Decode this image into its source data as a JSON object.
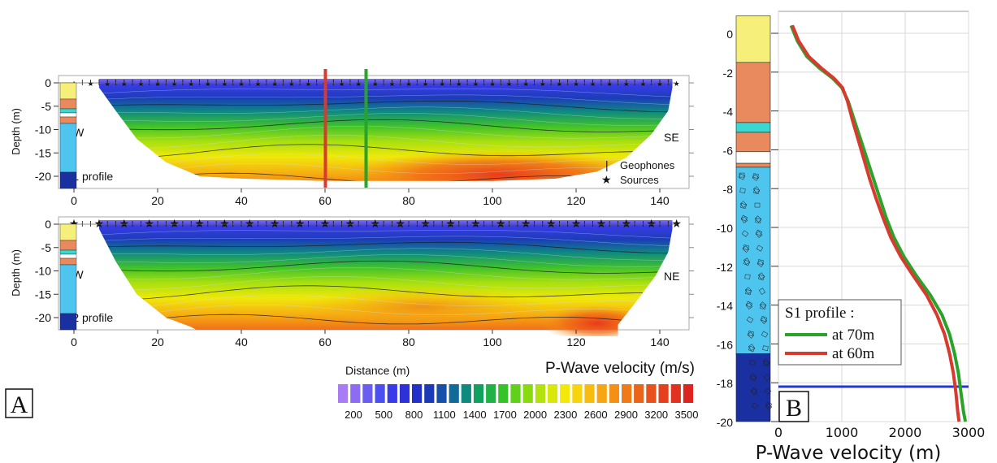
{
  "panel_letters": {
    "a": "A",
    "b": "B"
  },
  "colors": {
    "red_line": "#d83a30",
    "green_line": "#29a329",
    "blue_line": "#2535d8",
    "soil_yellow": "#f6f07a",
    "soil_orange": "#e8895e",
    "soil_blue": "#4ec5ee",
    "soil_darkblue": "#1a2fa0",
    "soil_cyan": "#39d8d0"
  },
  "chart_data": [
    {
      "type": "heatmap",
      "title": "",
      "xlabel": "Distance (m)",
      "ylabel": "Depth (m)",
      "xlim": [
        -3,
        148
      ],
      "ylim": [
        -24,
        0
      ],
      "xticks": [
        0,
        20,
        40,
        60,
        80,
        100,
        120,
        140
      ],
      "yticks": [
        0,
        -5,
        -10,
        -15,
        -20
      ],
      "profile_label": "S1 profile",
      "left_label": "NW",
      "right_label": "SE",
      "legend": {
        "geophones": "Geophones",
        "sources": "Sources"
      },
      "marker_lines": [
        {
          "x": 60,
          "color": "#d83a30"
        },
        {
          "x": 70,
          "color": "#29a329"
        }
      ],
      "depth_profile": [
        {
          "x": 6,
          "depth": -1
        },
        {
          "x": 10,
          "depth": -6
        },
        {
          "x": 15,
          "depth": -12
        },
        {
          "x": 22,
          "depth": -17
        },
        {
          "x": 30,
          "depth": -20
        },
        {
          "x": 40,
          "depth": -20.5
        },
        {
          "x": 60,
          "depth": -21
        },
        {
          "x": 80,
          "depth": -21
        },
        {
          "x": 100,
          "depth": -21
        },
        {
          "x": 115,
          "depth": -20.5
        },
        {
          "x": 125,
          "depth": -19
        },
        {
          "x": 132,
          "depth": -16
        },
        {
          "x": 138,
          "depth": -11
        },
        {
          "x": 142,
          "depth": -6
        },
        {
          "x": 143,
          "depth": -1
        }
      ]
    },
    {
      "type": "heatmap",
      "title": "",
      "xlabel": "Distance (m)",
      "ylabel": "Depth (m)",
      "xlim": [
        -3,
        148
      ],
      "ylim": [
        -24,
        0
      ],
      "xticks": [
        0,
        20,
        40,
        60,
        80,
        100,
        120,
        140
      ],
      "yticks": [
        0,
        -5,
        -10,
        -15,
        -20
      ],
      "profile_label": "S2 profile",
      "left_label": "SW",
      "right_label": "NE",
      "depth_profile": [
        {
          "x": 6,
          "depth": -1
        },
        {
          "x": 10,
          "depth": -8
        },
        {
          "x": 15,
          "depth": -15
        },
        {
          "x": 22,
          "depth": -20
        },
        {
          "x": 28,
          "depth": -22
        },
        {
          "x": 32,
          "depth": -24
        },
        {
          "x": 130,
          "depth": -24
        },
        {
          "x": 130,
          "depth": -21.5
        },
        {
          "x": 134,
          "depth": -17
        },
        {
          "x": 139,
          "depth": -11
        },
        {
          "x": 142,
          "depth": -6
        },
        {
          "x": 143,
          "depth": -1
        }
      ]
    },
    {
      "type": "line",
      "title": "",
      "xlabel": "P-Wave velocity (m)",
      "ylabel": "",
      "xlim": [
        0,
        3000
      ],
      "ylim": [
        -20,
        0.5
      ],
      "xticks": [
        0,
        1000,
        2000,
        3000
      ],
      "yticks": [
        0,
        -2,
        -4,
        -6,
        -8,
        -10,
        -12,
        -14,
        -16,
        -18,
        -20
      ],
      "grid": true,
      "legend_title": "S1 profile :",
      "legend_position": "bottom-left",
      "horizontal_line": {
        "y": -18.2,
        "color": "#2535d8"
      },
      "series": [
        {
          "name": "at 70m",
          "color": "#29a329",
          "points": [
            {
              "v": 200,
              "d": 0.4
            },
            {
              "v": 300,
              "d": -0.4
            },
            {
              "v": 450,
              "d": -1.2
            },
            {
              "v": 650,
              "d": -1.8
            },
            {
              "v": 850,
              "d": -2.3
            },
            {
              "v": 1000,
              "d": -2.8
            },
            {
              "v": 1100,
              "d": -3.5
            },
            {
              "v": 1200,
              "d": -4.5
            },
            {
              "v": 1300,
              "d": -5.5
            },
            {
              "v": 1400,
              "d": -6.5
            },
            {
              "v": 1500,
              "d": -7.5
            },
            {
              "v": 1600,
              "d": -8.5
            },
            {
              "v": 1700,
              "d": -9.5
            },
            {
              "v": 1820,
              "d": -10.5
            },
            {
              "v": 1980,
              "d": -11.5
            },
            {
              "v": 2180,
              "d": -12.5
            },
            {
              "v": 2400,
              "d": -13.5
            },
            {
              "v": 2580,
              "d": -14.5
            },
            {
              "v": 2700,
              "d": -15.5
            },
            {
              "v": 2780,
              "d": -16.5
            },
            {
              "v": 2840,
              "d": -17.5
            },
            {
              "v": 2880,
              "d": -18.5
            },
            {
              "v": 2920,
              "d": -19.5
            },
            {
              "v": 2950,
              "d": -20
            }
          ]
        },
        {
          "name": "at 60m",
          "color": "#d83a30",
          "points": [
            {
              "v": 220,
              "d": 0.4
            },
            {
              "v": 320,
              "d": -0.4
            },
            {
              "v": 480,
              "d": -1.2
            },
            {
              "v": 680,
              "d": -1.8
            },
            {
              "v": 870,
              "d": -2.3
            },
            {
              "v": 1010,
              "d": -2.8
            },
            {
              "v": 1090,
              "d": -3.5
            },
            {
              "v": 1170,
              "d": -4.5
            },
            {
              "v": 1260,
              "d": -5.5
            },
            {
              "v": 1350,
              "d": -6.5
            },
            {
              "v": 1440,
              "d": -7.5
            },
            {
              "v": 1540,
              "d": -8.5
            },
            {
              "v": 1650,
              "d": -9.5
            },
            {
              "v": 1770,
              "d": -10.5
            },
            {
              "v": 1930,
              "d": -11.5
            },
            {
              "v": 2130,
              "d": -12.5
            },
            {
              "v": 2340,
              "d": -13.5
            },
            {
              "v": 2500,
              "d": -14.5
            },
            {
              "v": 2620,
              "d": -15.5
            },
            {
              "v": 2700,
              "d": -16.5
            },
            {
              "v": 2760,
              "d": -17.5
            },
            {
              "v": 2800,
              "d": -18.5
            },
            {
              "v": 2830,
              "d": -19.5
            },
            {
              "v": 2850,
              "d": -20
            }
          ]
        }
      ]
    },
    {
      "type": "heatmap",
      "title": "P-Wave velocity (m/s)",
      "ticks": [
        200,
        500,
        800,
        1100,
        1400,
        1700,
        2000,
        2300,
        2600,
        2900,
        3200,
        3500
      ],
      "palette": [
        "#a97cf5",
        "#8c6cf2",
        "#6a5cf0",
        "#4b4ff0",
        "#3a3be8",
        "#2e31d8",
        "#2430c8",
        "#1c3ab8",
        "#1650a8",
        "#126a98",
        "#0e8a7e",
        "#12a060",
        "#20b244",
        "#38c22a",
        "#60d01a",
        "#8ada12",
        "#b4e20e",
        "#d8e80a",
        "#f2e80a",
        "#f8d40c",
        "#f8bc10",
        "#f6a614",
        "#f49016",
        "#f07a18",
        "#ec641a",
        "#e8501c",
        "#e4401e",
        "#e03220",
        "#dc2420"
      ]
    }
  ]
}
